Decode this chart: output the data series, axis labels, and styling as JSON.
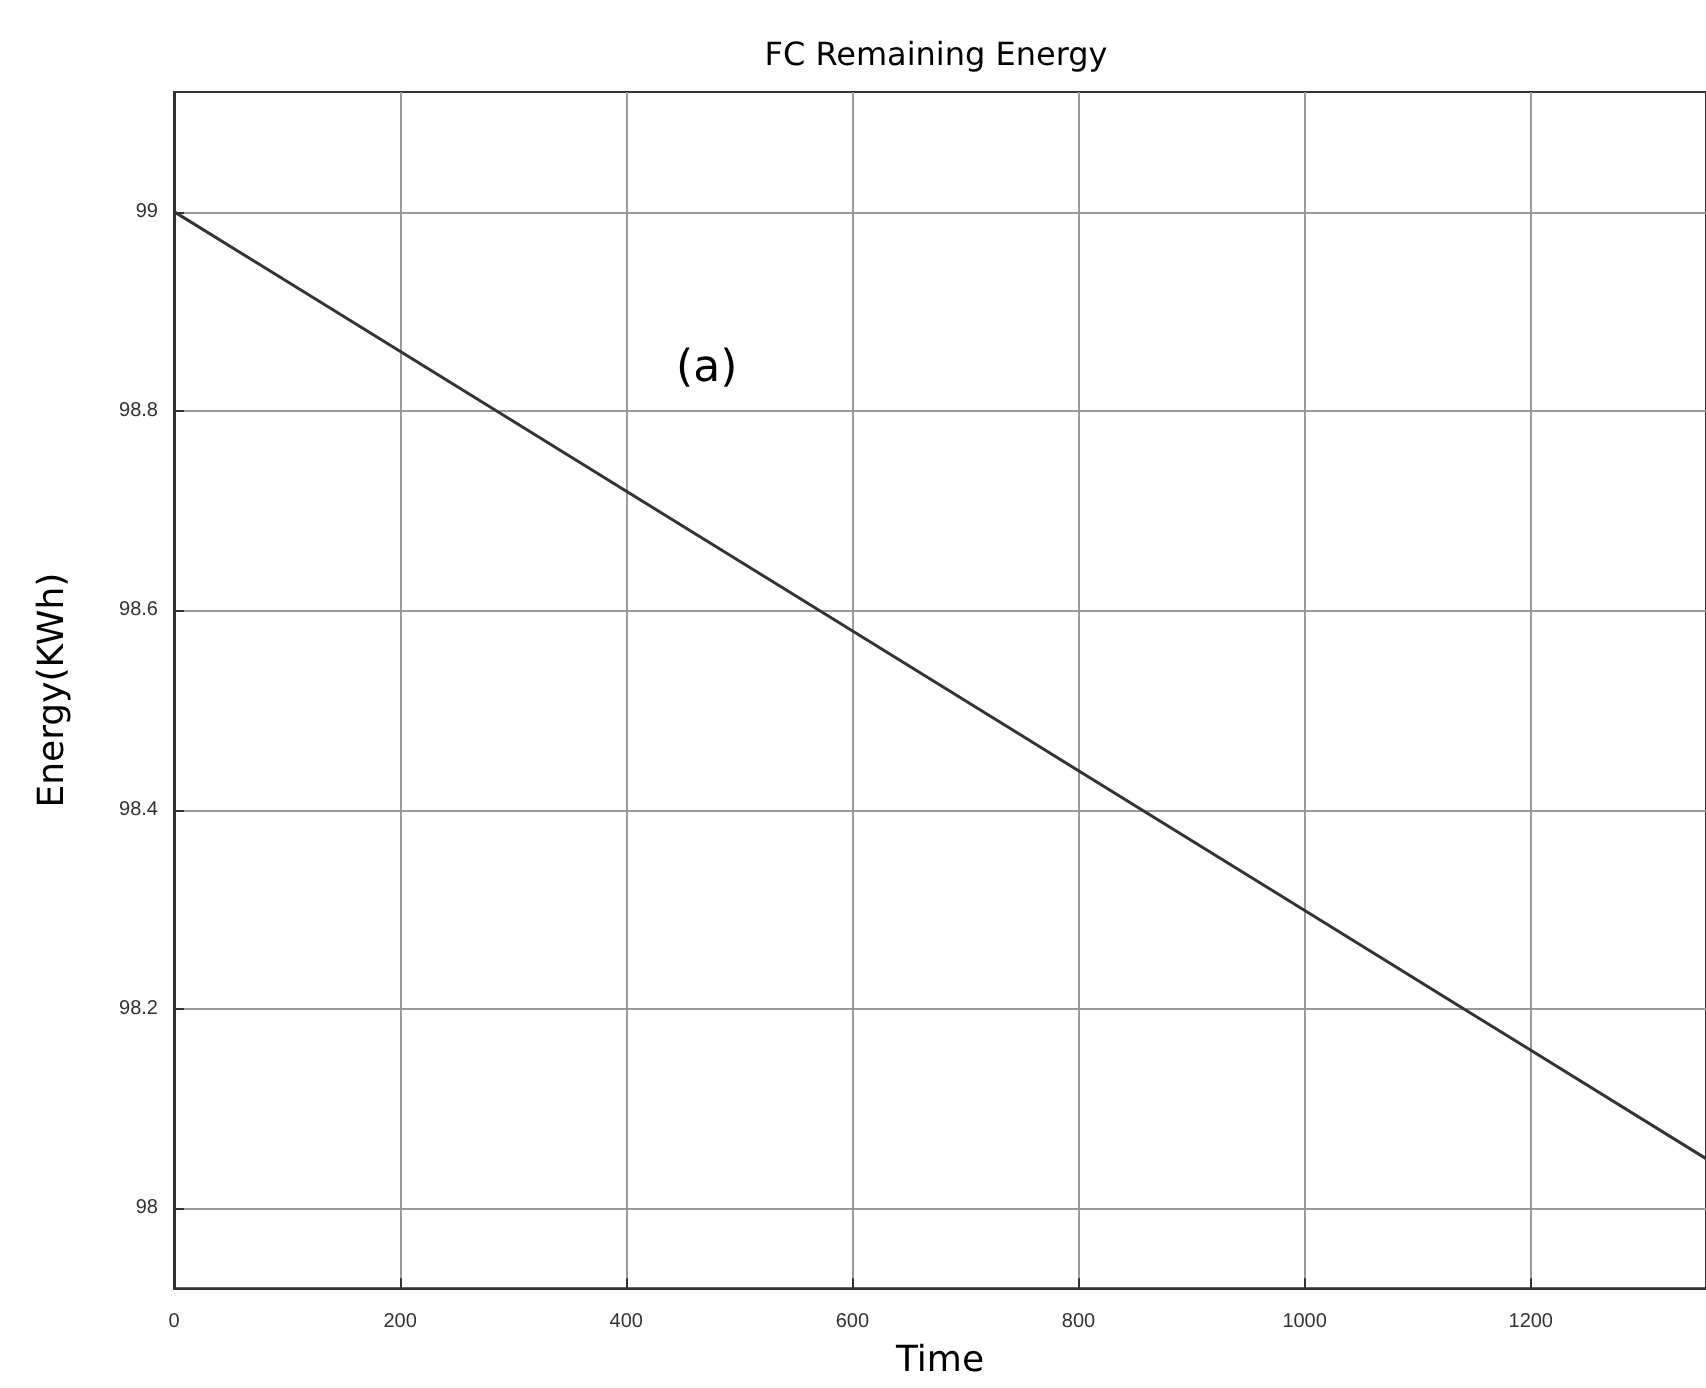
{
  "chart_data": {
    "type": "line",
    "title": "FC Remaining Energy",
    "xlabel": "Time",
    "ylabel": "Energy(KWh)",
    "annotations": [
      "(a)"
    ],
    "x": [
      0,
      1355
    ],
    "series": [
      {
        "color": "#333333",
        "values": [
          99,
          98.05
        ]
      }
    ],
    "xlim": [
      0,
      1355
    ],
    "xticks": [
      0,
      200,
      400,
      600,
      800,
      1000,
      1200
    ],
    "ylim": [
      97.92,
      99.12
    ],
    "yticks": [
      {
        "value": 98,
        "label": "98"
      },
      98.2,
      98.4,
      98.6,
      98.8,
      {
        "value": 99,
        "label": "99"
      }
    ],
    "grid": true,
    "marker": "none",
    "line_style": "solid"
  }
}
